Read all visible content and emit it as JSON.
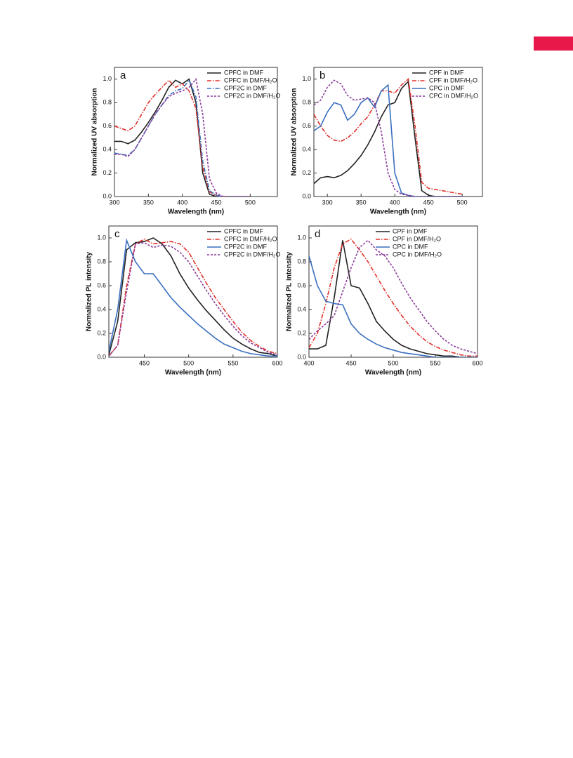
{
  "chart_data": [
    {
      "type": "line",
      "label": "a",
      "xlabel": "Wavelength (nm)",
      "ylabel": "Normalized UV absorption",
      "x": [
        300,
        310,
        320,
        330,
        340,
        350,
        360,
        370,
        380,
        390,
        400,
        410,
        420,
        430,
        440,
        450,
        460,
        470,
        480,
        490,
        500
      ],
      "series": [
        {
          "name": "CPFC in DMF",
          "color": "#222222",
          "style": "solid",
          "values": [
            0.47,
            0.47,
            0.45,
            0.48,
            0.55,
            0.63,
            0.72,
            0.82,
            0.93,
            0.99,
            0.96,
            1.0,
            0.8,
            0.2,
            0.02,
            0.0,
            0.0,
            0.0,
            0.0,
            0.0,
            0.0
          ]
        },
        {
          "name": "CPFC in DMF/H₂O",
          "color": "#e0302a",
          "style": "dashdot",
          "values": [
            0.6,
            0.58,
            0.56,
            0.6,
            0.7,
            0.8,
            0.87,
            0.93,
            0.99,
            0.93,
            0.96,
            0.9,
            0.75,
            0.25,
            0.04,
            0.01,
            0.0,
            0.0,
            0.0,
            0.0,
            0.0
          ]
        },
        {
          "name": "CPF2C in DMF",
          "color": "#3a6fbf",
          "style": "dashdot",
          "values": [
            0.37,
            0.36,
            0.35,
            0.4,
            0.5,
            0.6,
            0.7,
            0.78,
            0.86,
            0.9,
            0.92,
            0.99,
            0.85,
            0.3,
            0.05,
            0.01,
            0.0,
            0.0,
            0.0,
            0.0,
            0.0
          ]
        },
        {
          "name": "CPF2C in DMF/H₂O",
          "color": "#8a3a9a",
          "style": "dash",
          "values": [
            0.36,
            0.36,
            0.34,
            0.4,
            0.5,
            0.6,
            0.7,
            0.78,
            0.85,
            0.88,
            0.9,
            0.93,
            1.0,
            0.7,
            0.15,
            0.03,
            0.0,
            0.0,
            0.0,
            0.0,
            0.0
          ]
        }
      ],
      "xlim": [
        300,
        540
      ],
      "xticks": [
        300,
        350,
        400,
        450,
        500
      ],
      "ylim": [
        0,
        1.1
      ],
      "yticks": [
        {
          "value": 0,
          "label": "0.0"
        },
        {
          "value": 0.2,
          "label": "0.2"
        },
        {
          "value": 0.4,
          "label": "0.4"
        },
        {
          "value": 0.6,
          "label": "0.6"
        },
        {
          "value": 0.8,
          "label": "0.8"
        },
        {
          "value": 1,
          "label": "1.0"
        }
      ],
      "legend": "upper right"
    },
    {
      "type": "line",
      "label": "b",
      "xlabel": "Wavelength (nm)",
      "ylabel": "Normalized UV absorption",
      "x": [
        280,
        290,
        300,
        310,
        320,
        330,
        340,
        350,
        360,
        370,
        380,
        390,
        400,
        410,
        420,
        430,
        440,
        450,
        460,
        470,
        480,
        490,
        500
      ],
      "series": [
        {
          "name": "CPF in DMF",
          "color": "#222222",
          "style": "solid",
          "values": [
            0.11,
            0.16,
            0.17,
            0.16,
            0.18,
            0.22,
            0.28,
            0.35,
            0.44,
            0.55,
            0.68,
            0.78,
            0.8,
            0.92,
            0.98,
            0.5,
            0.05,
            0.01,
            0.0,
            0.0,
            0.0,
            0.0,
            0.0
          ]
        },
        {
          "name": "CPF in DMF/H₂O",
          "color": "#e0302a",
          "style": "dashdot",
          "values": [
            0.7,
            0.6,
            0.52,
            0.48,
            0.47,
            0.5,
            0.55,
            0.62,
            0.68,
            0.78,
            0.9,
            0.9,
            0.88,
            0.95,
            1.0,
            0.6,
            0.12,
            0.07,
            0.06,
            0.05,
            0.04,
            0.03,
            0.02
          ]
        },
        {
          "name": "CPC in DMF",
          "color": "#3a6fbf",
          "style": "solid",
          "values": [
            0.56,
            0.6,
            0.72,
            0.8,
            0.78,
            0.65,
            0.7,
            0.8,
            0.84,
            0.76,
            0.9,
            0.95,
            0.2,
            0.03,
            0.01,
            0.0,
            0.0,
            0.0,
            0.0,
            0.0,
            0.0,
            0.0,
            0.0
          ]
        },
        {
          "name": "CPC in DMF/H₂O",
          "color": "#8a3a9a",
          "style": "dash",
          "values": [
            0.78,
            0.82,
            0.93,
            0.99,
            0.96,
            0.86,
            0.82,
            0.83,
            0.84,
            0.8,
            0.55,
            0.2,
            0.06,
            0.02,
            0.01,
            0.0,
            0.0,
            0.0,
            0.0,
            0.0,
            0.0,
            0.0,
            0.0
          ]
        }
      ],
      "xlim": [
        280,
        530
      ],
      "xticks": [
        300,
        350,
        400,
        450,
        500
      ],
      "ylim": [
        0,
        1.1
      ],
      "yticks": [
        {
          "value": 0,
          "label": "0.0"
        },
        {
          "value": 0.2,
          "label": "0.2"
        },
        {
          "value": 0.4,
          "label": "0.4"
        },
        {
          "value": 0.6,
          "label": "0.6"
        },
        {
          "value": 0.8,
          "label": "0.8"
        },
        {
          "value": 1,
          "label": "1.0"
        }
      ],
      "legend": "upper right"
    },
    {
      "type": "line",
      "label": "c",
      "xlabel": "Wavelength (nm)",
      "ylabel": "Normalized PL intensity",
      "x": [
        410,
        420,
        430,
        440,
        450,
        460,
        470,
        480,
        490,
        500,
        510,
        520,
        530,
        540,
        550,
        560,
        570,
        580,
        590,
        600
      ],
      "series": [
        {
          "name": "CPFC in DMF",
          "color": "#222222",
          "style": "solid",
          "values": [
            0.02,
            0.3,
            0.9,
            0.96,
            0.97,
            1.0,
            0.95,
            0.85,
            0.7,
            0.58,
            0.48,
            0.39,
            0.31,
            0.23,
            0.16,
            0.11,
            0.07,
            0.04,
            0.03,
            0.01
          ]
        },
        {
          "name": "CPFC in DMF/H₂O",
          "color": "#e0302a",
          "style": "dashdot",
          "values": [
            0.01,
            0.1,
            0.6,
            0.95,
            0.99,
            0.95,
            0.96,
            0.97,
            0.95,
            0.88,
            0.75,
            0.62,
            0.5,
            0.4,
            0.3,
            0.21,
            0.14,
            0.09,
            0.05,
            0.03
          ]
        },
        {
          "name": "CPF2C in DMF",
          "color": "#3a6fbf",
          "style": "solid",
          "values": [
            0.05,
            0.4,
            0.98,
            0.8,
            0.7,
            0.7,
            0.6,
            0.5,
            0.42,
            0.35,
            0.28,
            0.22,
            0.16,
            0.11,
            0.08,
            0.05,
            0.03,
            0.02,
            0.01,
            0.01
          ]
        },
        {
          "name": "CPF2C in DMF/H₂O",
          "color": "#8a3a9a",
          "style": "dash",
          "values": [
            0.01,
            0.1,
            0.55,
            0.95,
            0.96,
            0.92,
            0.94,
            0.93,
            0.88,
            0.8,
            0.68,
            0.56,
            0.45,
            0.35,
            0.26,
            0.18,
            0.12,
            0.08,
            0.04,
            0.02
          ]
        }
      ],
      "xlim": [
        410,
        600
      ],
      "xticks": [
        450,
        500,
        550,
        600
      ],
      "ylim": [
        0,
        1.1
      ],
      "yticks": [
        {
          "value": 0,
          "label": "0.0"
        },
        {
          "value": 0.2,
          "label": "0.2"
        },
        {
          "value": 0.4,
          "label": "0.4"
        },
        {
          "value": 0.6,
          "label": "0.6"
        },
        {
          "value": 0.8,
          "label": "0.8"
        },
        {
          "value": 1,
          "label": "1.0"
        }
      ],
      "legend": "upper right"
    },
    {
      "type": "line",
      "label": "d",
      "xlabel": "Wavelength (nm)",
      "ylabel": "Normalized PL intensity",
      "x": [
        400,
        410,
        420,
        430,
        440,
        450,
        460,
        470,
        480,
        490,
        500,
        510,
        520,
        530,
        540,
        550,
        560,
        570,
        580,
        590,
        600
      ],
      "series": [
        {
          "name": "CPF in DMF",
          "color": "#222222",
          "style": "solid",
          "values": [
            0.07,
            0.07,
            0.1,
            0.5,
            0.98,
            0.6,
            0.58,
            0.45,
            0.3,
            0.22,
            0.15,
            0.1,
            0.07,
            0.05,
            0.03,
            0.02,
            0.01,
            0.01,
            0.0,
            0.0,
            0.0
          ]
        },
        {
          "name": "CPF in DMF/H₂O",
          "color": "#e0302a",
          "style": "dashdot",
          "values": [
            0.08,
            0.2,
            0.45,
            0.75,
            0.95,
            0.99,
            0.9,
            0.8,
            0.68,
            0.56,
            0.45,
            0.35,
            0.26,
            0.19,
            0.13,
            0.09,
            0.06,
            0.04,
            0.02,
            0.01,
            0.01
          ]
        },
        {
          "name": "CPC in DMF",
          "color": "#3a6fbf",
          "style": "solid",
          "values": [
            0.85,
            0.6,
            0.47,
            0.45,
            0.44,
            0.28,
            0.2,
            0.15,
            0.11,
            0.08,
            0.06,
            0.04,
            0.03,
            0.02,
            0.01,
            0.0,
            0.0,
            0.0,
            0.0,
            0.0,
            0.0
          ]
        },
        {
          "name": "CPC in DMF/H₂O",
          "color": "#8a3a9a",
          "style": "dash",
          "values": [
            0.15,
            0.22,
            0.28,
            0.35,
            0.55,
            0.75,
            0.92,
            0.98,
            0.9,
            0.85,
            0.75,
            0.62,
            0.5,
            0.4,
            0.3,
            0.22,
            0.15,
            0.1,
            0.07,
            0.05,
            0.03
          ]
        }
      ],
      "xlim": [
        400,
        600
      ],
      "xticks": [
        400,
        450,
        500,
        550,
        600
      ],
      "ylim": [
        0,
        1.1
      ],
      "yticks": [
        {
          "value": 0,
          "label": "0.0"
        },
        {
          "value": 0.2,
          "label": "0.2"
        },
        {
          "value": 0.4,
          "label": "0.4"
        },
        {
          "value": 0.6,
          "label": "0.6"
        },
        {
          "value": 0.8,
          "label": "0.8"
        },
        {
          "value": 1,
          "label": "1.0"
        }
      ],
      "legend": "upper center"
    }
  ]
}
